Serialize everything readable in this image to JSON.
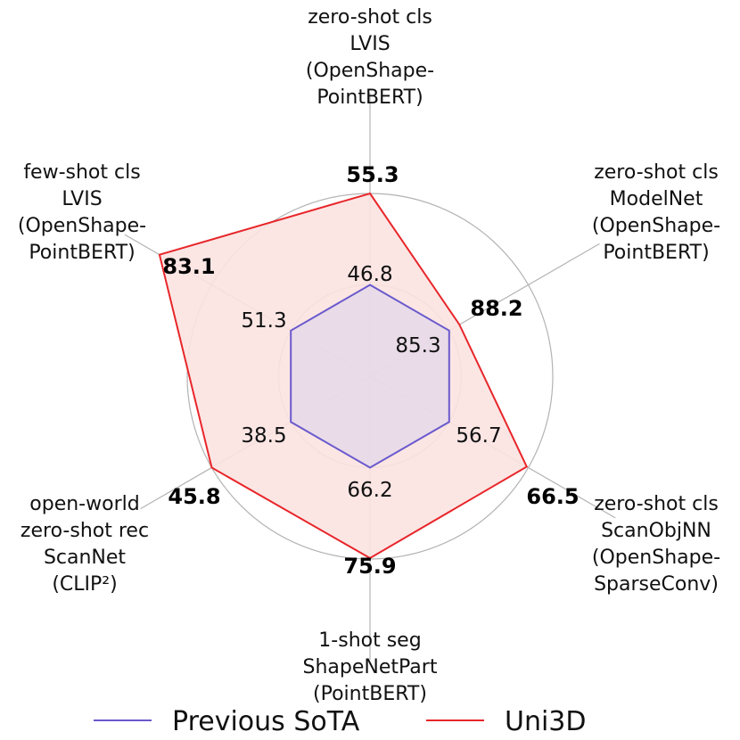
{
  "chart_data": {
    "type": "radar",
    "axes": [
      {
        "lines": [
          "zero-shot cls",
          "LVIS",
          "(OpenShape-",
          "PointBERT)"
        ],
        "previous": "46.8",
        "uni3d": "55.3"
      },
      {
        "lines": [
          "zero-shot cls",
          "ModelNet",
          "(OpenShape-",
          "PointBERT)"
        ],
        "previous": "85.3",
        "uni3d": "88.2"
      },
      {
        "lines": [
          "zero-shot cls",
          "ScanObjNN",
          "(OpenShape-",
          "SparseConv)"
        ],
        "previous": "56.7",
        "uni3d": "66.5"
      },
      {
        "lines": [
          "1-shot seg",
          "ShapeNetPart",
          "(PointBERT)"
        ],
        "previous": "66.2",
        "uni3d": "75.9"
      },
      {
        "lines": [
          "open-world",
          "zero-shot rec",
          "ScanNet",
          "(CLIP²)"
        ],
        "previous": "38.5",
        "uni3d": "45.8"
      },
      {
        "lines": [
          "few-shot cls",
          "LVIS",
          "(OpenShape-",
          "PointBERT)"
        ],
        "previous": "51.3",
        "uni3d": "83.1"
      }
    ],
    "series": [
      {
        "name": "Previous SoTA",
        "color": "#6a5acd",
        "fill": "#e3d7ea",
        "normalized": [
          0.5,
          0.5,
          0.5,
          0.5,
          0.5,
          0.5
        ]
      },
      {
        "name": "Uni3D",
        "color": "#e8262a",
        "fill": "#fbe3e1",
        "normalized": [
          1.0,
          0.565,
          0.99,
          0.995,
          1.0,
          1.33
        ]
      }
    ],
    "grid": true,
    "grid_rings": [
      0.5,
      1.0
    ],
    "legend_placement": "bottom"
  }
}
